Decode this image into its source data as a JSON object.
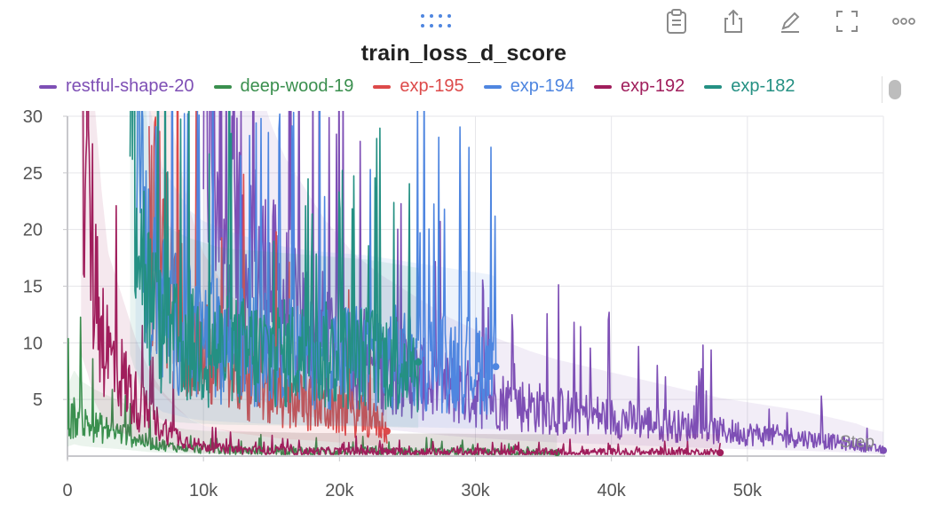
{
  "panel": {
    "title": "train_loss_d_score",
    "toolbar": [
      "clipboard-icon",
      "share-icon",
      "edit-pencil-icon",
      "fullscreen-icon",
      "more-icon"
    ]
  },
  "colors": {
    "grid": "#e6e6ea",
    "axis": "#c8c8cc",
    "tick_text": "#555555"
  },
  "chart_data": {
    "type": "line",
    "title": "train_loss_d_score",
    "xlabel": "Step",
    "ylabel": "",
    "xlim": [
      0,
      60000
    ],
    "ylim": [
      0,
      30
    ],
    "x_ticks": [
      0,
      10000,
      20000,
      30000,
      40000,
      50000
    ],
    "x_tick_labels": [
      "0",
      "10k",
      "20k",
      "30k",
      "40k",
      "50k"
    ],
    "y_ticks": [
      5,
      10,
      15,
      20,
      25,
      30
    ],
    "y_tick_labels": [
      "5",
      "10",
      "15",
      "20",
      "25",
      "30"
    ],
    "grid": true,
    "legend_position": "top",
    "series": [
      {
        "name": "restful-shape-20",
        "color": "#7e4fb5",
        "x": [
          10000,
          10500,
          11000,
          12000,
          13000,
          14000,
          15000,
          16000,
          17000,
          18000,
          19000,
          20000,
          21000,
          22000,
          23000,
          24000,
          25000,
          26000,
          28000,
          30000,
          32000,
          34000,
          36000,
          38000,
          40000,
          42000,
          44000,
          46000,
          48000,
          50000,
          52000,
          54000,
          56000,
          58000,
          60000
        ],
        "y": [
          30,
          28,
          25,
          22,
          19,
          17,
          15,
          13.5,
          12.5,
          11.5,
          10.5,
          9.8,
          9,
          8.5,
          8,
          7.6,
          7.2,
          6.8,
          6,
          5.4,
          4.9,
          4.4,
          4,
          3.7,
          3.4,
          3.1,
          2.8,
          2.5,
          2.2,
          2,
          1.8,
          1.6,
          1.3,
          1,
          0.5
        ]
      },
      {
        "name": "deep-wood-19",
        "color": "#3a8f4e",
        "x": [
          0,
          500,
          1000,
          1500,
          2000,
          3000,
          4000,
          5000,
          6000,
          7000,
          8000,
          9000,
          10000,
          12000,
          14000,
          16000,
          18000,
          20000,
          22000,
          24000,
          26000,
          28000,
          30000,
          32000,
          34000,
          36000
        ],
        "y": [
          2.8,
          3.5,
          3,
          2.8,
          2.6,
          2.3,
          2,
          1.6,
          1.2,
          1,
          0.8,
          0.7,
          0.6,
          0.5,
          0.5,
          0.45,
          0.4,
          0.4,
          0.4,
          0.35,
          0.35,
          0.35,
          0.3,
          0.3,
          0.3,
          0.3
        ]
      },
      {
        "name": "exp-195",
        "color": "#dd4a4a",
        "x": [
          6000,
          7000,
          8000,
          9000,
          10000,
          11000,
          12000,
          13000,
          14000,
          15000,
          16000,
          17000,
          18000,
          19000,
          20000,
          21000,
          22000,
          23000,
          23500
        ],
        "y": [
          22,
          18,
          14,
          11,
          9,
          8,
          7,
          6.5,
          6,
          5.5,
          5,
          4.8,
          4.6,
          4.3,
          4,
          3.7,
          3.3,
          2.9,
          2.2
        ]
      },
      {
        "name": "exp-194",
        "color": "#4f86e0",
        "x": [
          5000,
          6000,
          7000,
          8000,
          9000,
          10000,
          12000,
          14000,
          16000,
          18000,
          20000,
          22000,
          24000,
          26000,
          27000,
          28000,
          29000,
          30000,
          31000,
          31500
        ],
        "y": [
          26,
          16,
          13,
          12,
          11,
          10.5,
          10,
          9.6,
          9.3,
          9.1,
          9,
          8.9,
          8.7,
          8.5,
          8.4,
          8.3,
          8.2,
          8.1,
          8,
          7.9
        ]
      },
      {
        "name": "exp-192",
        "color": "#a01e5c",
        "x": [
          1000,
          1500,
          2000,
          2500,
          3000,
          4000,
          5000,
          6000,
          7000,
          8000,
          9000,
          10000,
          12000,
          14000,
          16000,
          18000,
          20000,
          24000,
          28000,
          32000,
          36000,
          40000,
          44000,
          48000
        ],
        "y": [
          30,
          24,
          16,
          12,
          9,
          7,
          5,
          3.5,
          2.5,
          1.8,
          1.2,
          0.9,
          0.6,
          0.5,
          0.45,
          0.4,
          0.4,
          0.35,
          0.35,
          0.3,
          0.3,
          0.3,
          0.3,
          0.3
        ]
      },
      {
        "name": "exp-182",
        "color": "#249083",
        "x": [
          4600,
          5000,
          5500,
          6000,
          6500,
          7000,
          8000,
          9000,
          10000,
          11000,
          12000,
          14000,
          16000,
          18000,
          20000,
          22000,
          24000,
          25800
        ],
        "y": [
          30,
          25,
          18,
          14,
          12,
          10.5,
          10,
          9.7,
          9.5,
          9.3,
          9.2,
          9.1,
          9,
          8.9,
          8.8,
          8.7,
          8.5,
          8.3
        ]
      }
    ]
  }
}
